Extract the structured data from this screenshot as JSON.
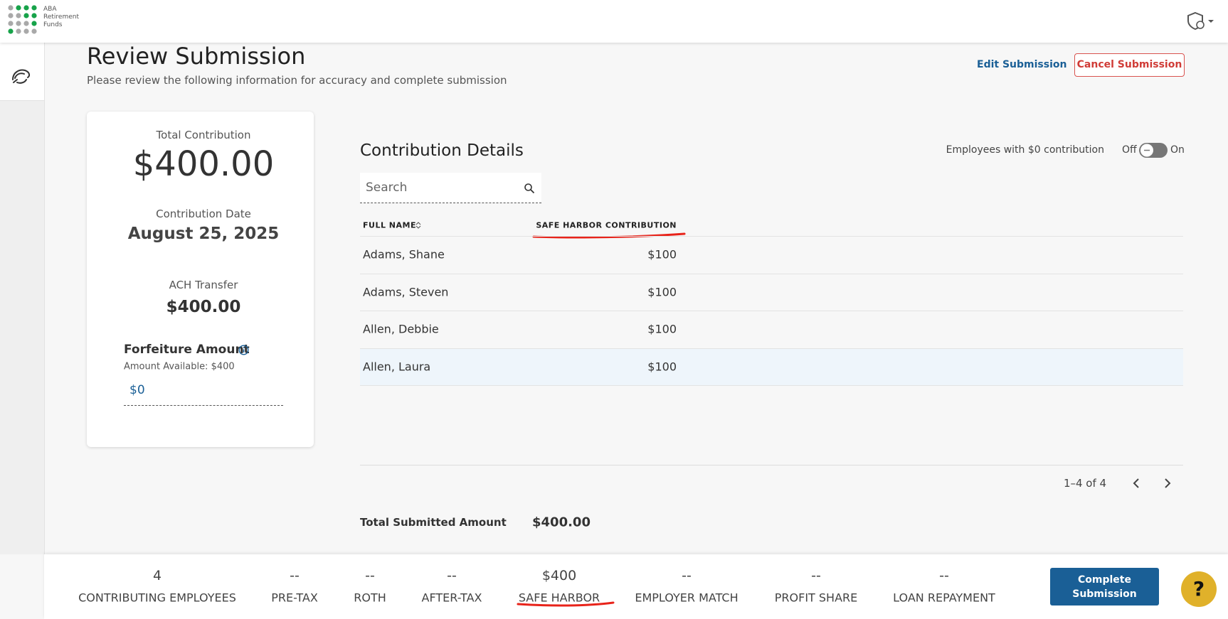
{
  "header": {
    "logo_text": [
      "ABA",
      "Retirement",
      "Funds"
    ]
  },
  "page": {
    "title": "Review Submission",
    "subtitle": "Please review the following information for accuracy and complete submission",
    "edit_link": "Edit Submission",
    "cancel_button": "Cancel Submission"
  },
  "summary": {
    "total_contribution": {
      "label": "Total Contribution",
      "value": "$400.00"
    },
    "contribution_date": {
      "label": "Contribution Date",
      "value": "August 25, 2025"
    },
    "ach_transfer": {
      "label": "ACH Transfer",
      "value": "$400.00"
    },
    "forfeiture": {
      "label": "Forfeiture Amount",
      "available": "Amount Available: $400",
      "input": "$0"
    }
  },
  "contribution_details": {
    "title": "Contribution Details",
    "toggle": {
      "label": "Employees with $0 contribution",
      "off": "Off",
      "on": "On"
    },
    "search_placeholder": "Search",
    "table": {
      "columns": [
        "FULL NAME",
        "SAFE HARBOR CONTRIBUTION"
      ],
      "rows": [
        [
          "Adams, Shane",
          "$100"
        ],
        [
          "Adams, Steven",
          "$100"
        ],
        [
          "Allen, Debbie",
          "$100"
        ],
        [
          "Allen, Laura",
          "$100"
        ]
      ]
    },
    "pagination": "1–4 of 4",
    "total": {
      "label": "Total Submitted Amount",
      "value": "$400.00"
    }
  },
  "footer": {
    "stats": [
      {
        "value": "4",
        "label": "CONTRIBUTING EMPLOYEES"
      },
      {
        "value": "--",
        "label": "PRE-TAX"
      },
      {
        "value": "--",
        "label": "ROTH"
      },
      {
        "value": "--",
        "label": "AFTER-TAX"
      },
      {
        "value": "$400",
        "label": "SAFE HARBOR"
      },
      {
        "value": "--",
        "label": "EMPLOYER MATCH"
      },
      {
        "value": "--",
        "label": "PROFIT SHARE"
      },
      {
        "value": "--",
        "label": "LOAN REPAYMENT"
      }
    ],
    "complete_button": "Complete Submission",
    "help": "?"
  }
}
